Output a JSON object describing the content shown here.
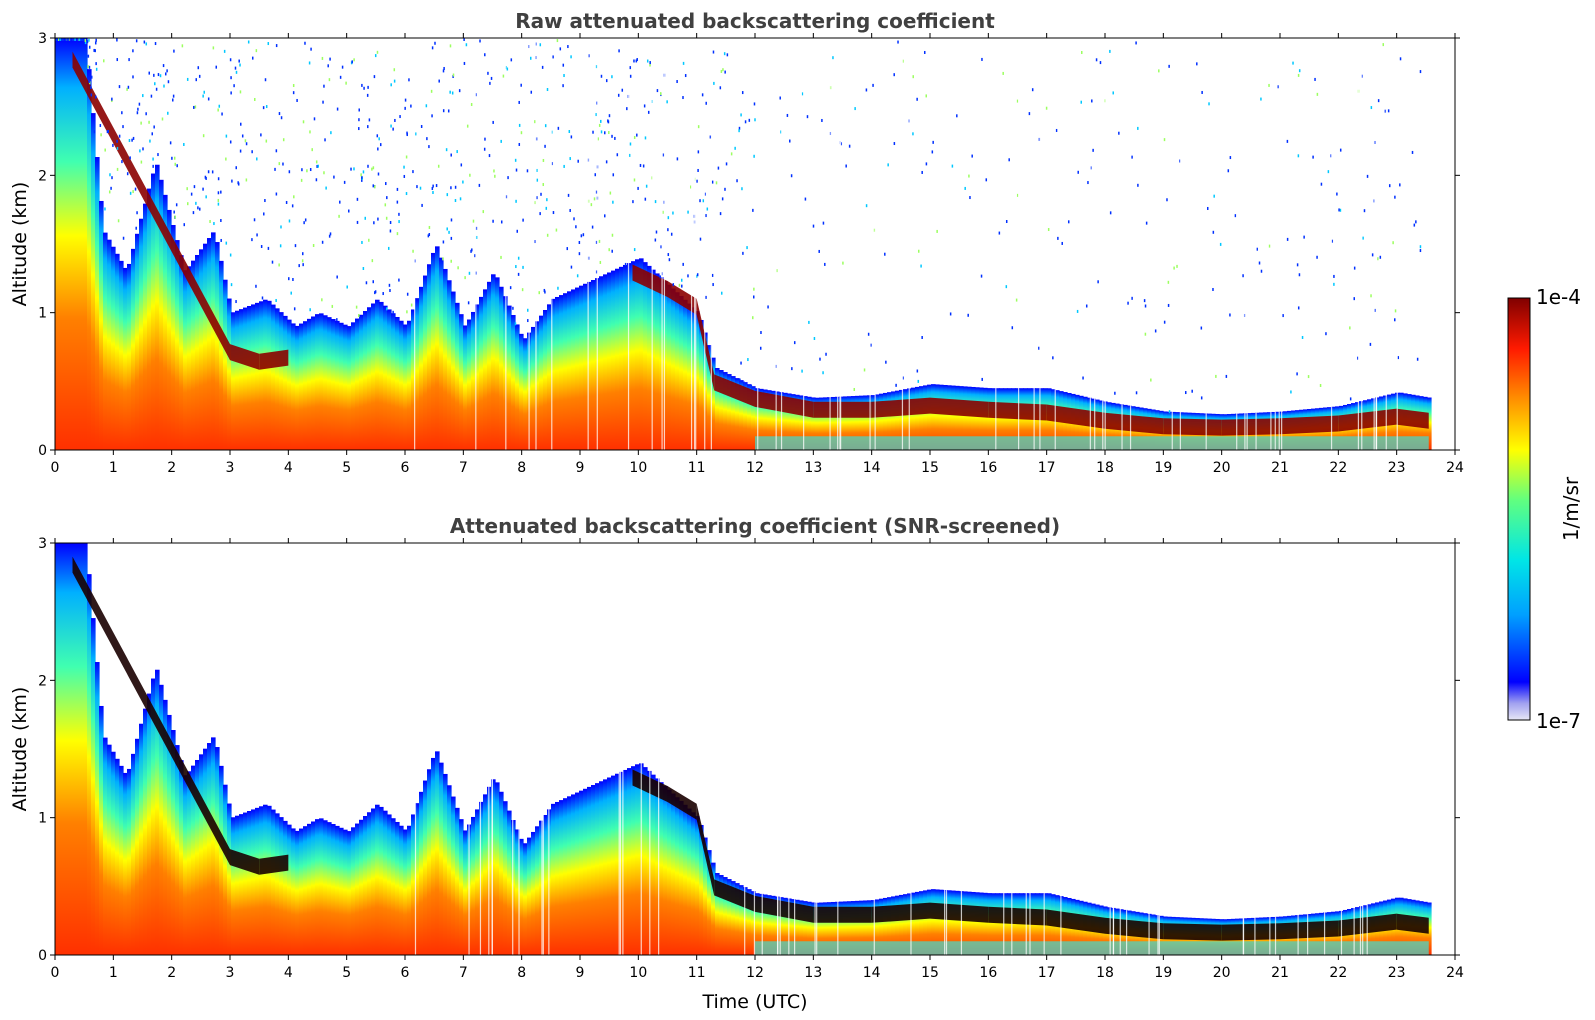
{
  "chart_data": [
    {
      "type": "heatmap",
      "title": "Raw attenuated backscattering coefficient",
      "xlabel": "",
      "ylabel": "Altitude (km)",
      "xlim": [
        0,
        24
      ],
      "ylim": [
        0,
        3
      ],
      "xticks": [
        "0",
        "1",
        "2",
        "3",
        "4",
        "5",
        "6",
        "7",
        "8",
        "9",
        "10",
        "11",
        "12",
        "13",
        "14",
        "15",
        "16",
        "17",
        "18",
        "19",
        "20",
        "21",
        "22",
        "23",
        "24"
      ],
      "yticks": [
        "0",
        "1",
        "2",
        "3"
      ],
      "data_end_time": 23.55,
      "cloud_top_km": [
        [
          0.0,
          3.0
        ],
        [
          0.5,
          3.0
        ],
        [
          0.8,
          1.6
        ],
        [
          1.2,
          1.3
        ],
        [
          1.7,
          2.1
        ],
        [
          2.2,
          1.3
        ],
        [
          2.7,
          1.6
        ],
        [
          3.0,
          1.0
        ],
        [
          3.6,
          1.1
        ],
        [
          4.1,
          0.9
        ],
        [
          4.5,
          1.0
        ],
        [
          5.0,
          0.9
        ],
        [
          5.5,
          1.1
        ],
        [
          6.0,
          0.9
        ],
        [
          6.5,
          1.5
        ],
        [
          7.0,
          0.9
        ],
        [
          7.5,
          1.3
        ],
        [
          8.0,
          0.8
        ],
        [
          8.5,
          1.1
        ],
        [
          9.0,
          1.2
        ],
        [
          9.5,
          1.3
        ],
        [
          10.0,
          1.4
        ],
        [
          10.5,
          1.2
        ],
        [
          11.0,
          1.0
        ],
        [
          11.3,
          0.6
        ],
        [
          12.0,
          0.45
        ],
        [
          13.0,
          0.38
        ],
        [
          14.0,
          0.4
        ],
        [
          15.0,
          0.48
        ],
        [
          16.0,
          0.45
        ],
        [
          17.0,
          0.45
        ],
        [
          18.0,
          0.35
        ],
        [
          19.0,
          0.28
        ],
        [
          20.0,
          0.26
        ],
        [
          21.0,
          0.28
        ],
        [
          22.0,
          0.32
        ],
        [
          23.0,
          0.42
        ],
        [
          23.55,
          0.38
        ]
      ],
      "dense_layer_km": [
        [
          0.3,
          2.85
        ],
        [
          3.0,
          0.72
        ],
        [
          3.5,
          0.65
        ],
        [
          4.0,
          0.68
        ],
        [
          9.9,
          1.3
        ],
        [
          10.5,
          1.18
        ],
        [
          11.0,
          1.05
        ],
        [
          11.3,
          0.5
        ],
        [
          12.0,
          0.38
        ],
        [
          13.0,
          0.3
        ],
        [
          14.0,
          0.3
        ],
        [
          15.0,
          0.33
        ],
        [
          16.0,
          0.3
        ],
        [
          17.0,
          0.28
        ],
        [
          18.0,
          0.22
        ],
        [
          19.0,
          0.18
        ],
        [
          20.0,
          0.17
        ],
        [
          21.0,
          0.18
        ],
        [
          22.0,
          0.2
        ],
        [
          23.0,
          0.25
        ],
        [
          23.55,
          0.22
        ]
      ]
    },
    {
      "type": "heatmap",
      "title": "Attenuated backscattering coefficient (SNR-screened)",
      "xlabel": "Time (UTC)",
      "ylabel": "Altitude (km)",
      "xlim": [
        0,
        24
      ],
      "ylim": [
        0,
        3
      ],
      "xticks": [
        "0",
        "1",
        "2",
        "3",
        "4",
        "5",
        "6",
        "7",
        "8",
        "9",
        "10",
        "11",
        "12",
        "13",
        "14",
        "15",
        "16",
        "17",
        "18",
        "19",
        "20",
        "21",
        "22",
        "23",
        "24"
      ],
      "yticks": [
        "0",
        "1",
        "2",
        "3"
      ],
      "data_end_time": 23.55
    }
  ],
  "colorbar": {
    "label": "1/m/sr",
    "max_label": "1e-4",
    "min_label": "1e-7",
    "colormap": "jet",
    "colors": [
      "#e6e6f5",
      "#0000ff",
      "#00c8ff",
      "#33ff99",
      "#ffff00",
      "#ff8000",
      "#ff0000",
      "#800000"
    ]
  }
}
